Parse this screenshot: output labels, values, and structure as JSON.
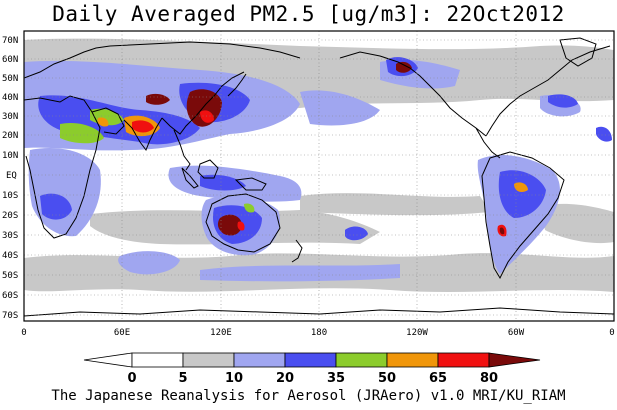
{
  "title": "Daily Averaged PM2.5 [ug/m3]: 22Oct2012",
  "footer": "The Japanese Reanalysis for Aerosol (JRAero) v1.0 MRI/KU_RIAM",
  "lat_labels": [
    "70N",
    "60N",
    "50N",
    "40N",
    "30N",
    "20N",
    "10N",
    "EQ",
    "10S",
    "20S",
    "30S",
    "40S",
    "50S",
    "60S",
    "70S"
  ],
  "lon_labels": [
    "0",
    "60E",
    "120E",
    "180",
    "120W",
    "60W",
    "0"
  ],
  "colorbar": {
    "levels": [
      "0",
      "5",
      "10",
      "20",
      "35",
      "50",
      "65",
      "80"
    ],
    "colors": [
      "#ffffff",
      "#c8c8c8",
      "#a0a6f0",
      "#4a4ef0",
      "#8ccc2c",
      "#f0960a",
      "#f01010",
      "#7a0a0a"
    ]
  },
  "colors": {
    "gray": "#c8c8c8",
    "light_blue": "#a0a6f0",
    "blue": "#4a4ef0",
    "green": "#8ccc2c",
    "orange": "#f0960a",
    "red": "#f01010",
    "dark_red": "#7a0a0a"
  }
}
